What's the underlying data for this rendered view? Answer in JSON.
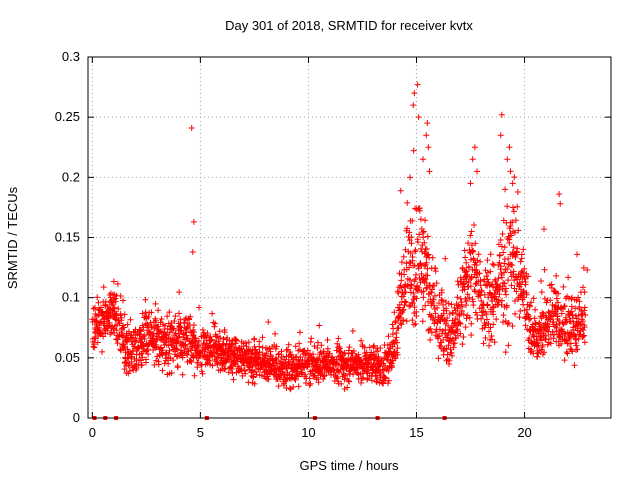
{
  "chart_data": {
    "type": "scatter",
    "title": "Day 301 of 2018, SRMTID for receiver kvtx",
    "xlabel": "GPS time / hours",
    "ylabel": "SRMTID / TECUs",
    "xlim": [
      -0.2,
      24
    ],
    "ylim": [
      0,
      0.3
    ],
    "xticks": [
      0,
      5,
      10,
      15,
      20
    ],
    "yticks": [
      0,
      0.05,
      0.1,
      0.15,
      0.2,
      0.25,
      0.3
    ],
    "ytick_labels": [
      "0",
      "0.05",
      "0.1",
      "0.15",
      "0.2",
      "0.25",
      "0.3"
    ],
    "grid": true,
    "marker": "+",
    "color": "#ff0000",
    "zero_markers_x": [
      0.1,
      0.6,
      1.1,
      5.3,
      10.3,
      13.2,
      16.3
    ],
    "baseline_profile": {
      "x": [
        0,
        0.5,
        1,
        1.5,
        2,
        2.5,
        3,
        3.5,
        4,
        4.5,
        5,
        5.5,
        6,
        7,
        8,
        9,
        10,
        11,
        12,
        13,
        13.5,
        14,
        14.3,
        14.6,
        14.9,
        15.2,
        15.5,
        15.8,
        16.2,
        16.6,
        17,
        17.4,
        17.8,
        18.2,
        18.6,
        19,
        19.4,
        19.8,
        20.2,
        20.6,
        21,
        21.4,
        21.8,
        22.2,
        22.8
      ],
      "y": [
        0.07,
        0.085,
        0.09,
        0.06,
        0.05,
        0.07,
        0.065,
        0.06,
        0.065,
        0.06,
        0.055,
        0.06,
        0.055,
        0.05,
        0.045,
        0.04,
        0.045,
        0.045,
        0.045,
        0.045,
        0.04,
        0.06,
        0.1,
        0.13,
        0.11,
        0.13,
        0.12,
        0.1,
        0.08,
        0.065,
        0.08,
        0.12,
        0.11,
        0.09,
        0.1,
        0.12,
        0.13,
        0.12,
        0.08,
        0.065,
        0.08,
        0.09,
        0.075,
        0.075,
        0.08
      ],
      "spread": [
        0.02,
        0.02,
        0.02,
        0.02,
        0.02,
        0.02,
        0.02,
        0.02,
        0.02,
        0.02,
        0.015,
        0.015,
        0.015,
        0.015,
        0.015,
        0.015,
        0.015,
        0.015,
        0.015,
        0.015,
        0.015,
        0.02,
        0.04,
        0.06,
        0.05,
        0.04,
        0.04,
        0.035,
        0.03,
        0.025,
        0.03,
        0.04,
        0.035,
        0.03,
        0.035,
        0.05,
        0.05,
        0.04,
        0.025,
        0.02,
        0.025,
        0.025,
        0.025,
        0.025,
        0.025
      ]
    },
    "peaks": [
      {
        "x": 4.6,
        "y": 0.241
      },
      {
        "x": 4.7,
        "y": 0.163
      },
      {
        "x": 4.65,
        "y": 0.138
      },
      {
        "x": 15.05,
        "y": 0.277
      },
      {
        "x": 14.9,
        "y": 0.27
      },
      {
        "x": 14.85,
        "y": 0.26
      },
      {
        "x": 15.1,
        "y": 0.25
      },
      {
        "x": 15.5,
        "y": 0.245
      },
      {
        "x": 15.45,
        "y": 0.235
      },
      {
        "x": 15.55,
        "y": 0.225
      },
      {
        "x": 15.3,
        "y": 0.215
      },
      {
        "x": 15.6,
        "y": 0.205
      },
      {
        "x": 14.7,
        "y": 0.2
      },
      {
        "x": 17.7,
        "y": 0.225
      },
      {
        "x": 17.6,
        "y": 0.215
      },
      {
        "x": 17.8,
        "y": 0.205
      },
      {
        "x": 17.5,
        "y": 0.195
      },
      {
        "x": 18.95,
        "y": 0.252
      },
      {
        "x": 18.9,
        "y": 0.235
      },
      {
        "x": 19.3,
        "y": 0.225
      },
      {
        "x": 19.2,
        "y": 0.215
      },
      {
        "x": 19.35,
        "y": 0.205
      },
      {
        "x": 19.45,
        "y": 0.195
      },
      {
        "x": 19.1,
        "y": 0.19
      },
      {
        "x": 21.6,
        "y": 0.186
      },
      {
        "x": 21.65,
        "y": 0.178
      },
      {
        "x": 20.9,
        "y": 0.157
      },
      {
        "x": 22.9,
        "y": 0.123
      }
    ]
  }
}
